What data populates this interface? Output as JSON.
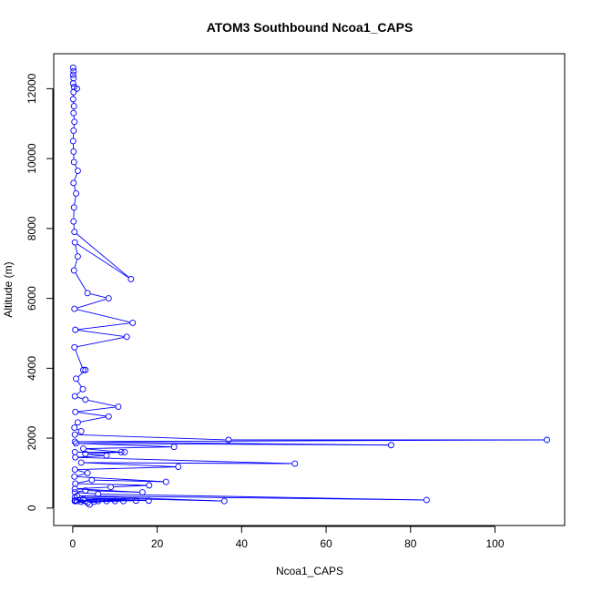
{
  "chart_data": {
    "type": "line",
    "title": "ATOM3 Southbound Ncoa1_CAPS",
    "xlabel": "Ncoa1_CAPS",
    "ylabel": "Altitude (m)",
    "xlim": [
      -4.5,
      116.5
    ],
    "ylim": [
      -500,
      13000
    ],
    "x_ticks": [
      0,
      20,
      40,
      60,
      80,
      100
    ],
    "y_ticks": [
      0,
      2000,
      4000,
      6000,
      8000,
      10000,
      12000
    ],
    "grid": false,
    "legend": "none",
    "series": [
      {
        "color": "#0000ff",
        "marker": "open-circle",
        "points": [
          [
            0.1,
            12600
          ],
          [
            0.2,
            12500
          ],
          [
            0.1,
            12400
          ],
          [
            0.2,
            12300
          ],
          [
            0.1,
            12150
          ],
          [
            0.3,
            12050
          ],
          [
            1.0,
            12000
          ],
          [
            0.2,
            11900
          ],
          [
            0.1,
            11700
          ],
          [
            0.3,
            11500
          ],
          [
            0.2,
            11300
          ],
          [
            0.4,
            11050
          ],
          [
            0.2,
            10800
          ],
          [
            0.1,
            10500
          ],
          [
            0.2,
            10200
          ],
          [
            0.3,
            9900
          ],
          [
            1.2,
            9650
          ],
          [
            0.2,
            9300
          ],
          [
            0.8,
            9000
          ],
          [
            0.3,
            8600
          ],
          [
            0.2,
            8200
          ],
          [
            0.4,
            7900
          ],
          [
            13.8,
            6550
          ],
          [
            0.5,
            7600
          ],
          [
            1.2,
            7200
          ],
          [
            0.3,
            6800
          ],
          [
            3.5,
            6150
          ],
          [
            8.5,
            6000
          ],
          [
            0.4,
            5700
          ],
          [
            14.2,
            5300
          ],
          [
            0.6,
            5100
          ],
          [
            12.8,
            4900
          ],
          [
            0.4,
            4600
          ],
          [
            2.5,
            3950
          ],
          [
            3.0,
            3950
          ],
          [
            0.8,
            3700
          ],
          [
            2.4,
            3400
          ],
          [
            0.5,
            3200
          ],
          [
            3.0,
            3100
          ],
          [
            10.8,
            2900
          ],
          [
            0.6,
            2750
          ],
          [
            8.5,
            2620
          ],
          [
            1.2,
            2450
          ],
          [
            0.4,
            2300
          ],
          [
            2.0,
            2200
          ],
          [
            0.5,
            2100
          ],
          [
            36.9,
            1950
          ],
          [
            112.3,
            1950
          ],
          [
            0.5,
            1900
          ],
          [
            75.4,
            1800
          ],
          [
            0.8,
            1850
          ],
          [
            24.0,
            1750
          ],
          [
            2.5,
            1700
          ],
          [
            11.5,
            1600
          ],
          [
            0.5,
            1600
          ],
          [
            12.3,
            1600
          ],
          [
            3.0,
            1550
          ],
          [
            8.0,
            1500
          ],
          [
            0.6,
            1450
          ],
          [
            52.6,
            1270
          ],
          [
            2.0,
            1300
          ],
          [
            25.0,
            1180
          ],
          [
            0.5,
            1100
          ],
          [
            3.5,
            1000
          ],
          [
            0.4,
            900
          ],
          [
            22.1,
            750
          ],
          [
            4.5,
            800
          ],
          [
            0.6,
            700
          ],
          [
            18.1,
            650
          ],
          [
            9.0,
            600
          ],
          [
            0.5,
            550
          ],
          [
            16.5,
            450
          ],
          [
            3.0,
            500
          ],
          [
            0.5,
            450
          ],
          [
            6.0,
            400
          ],
          [
            83.8,
            230
          ],
          [
            1.0,
            350
          ],
          [
            35.9,
            200
          ],
          [
            0.5,
            300
          ],
          [
            18.0,
            210
          ],
          [
            2.5,
            250
          ],
          [
            15.0,
            210
          ],
          [
            0.5,
            200
          ],
          [
            12.0,
            200
          ],
          [
            5.0,
            180
          ],
          [
            10.0,
            200
          ],
          [
            0.6,
            220
          ],
          [
            8.0,
            200
          ],
          [
            3.5,
            150
          ],
          [
            6.0,
            200
          ],
          [
            1.0,
            200
          ],
          [
            4.0,
            100
          ],
          [
            0.5,
            200
          ],
          [
            2.0,
            180
          ]
        ]
      }
    ]
  }
}
